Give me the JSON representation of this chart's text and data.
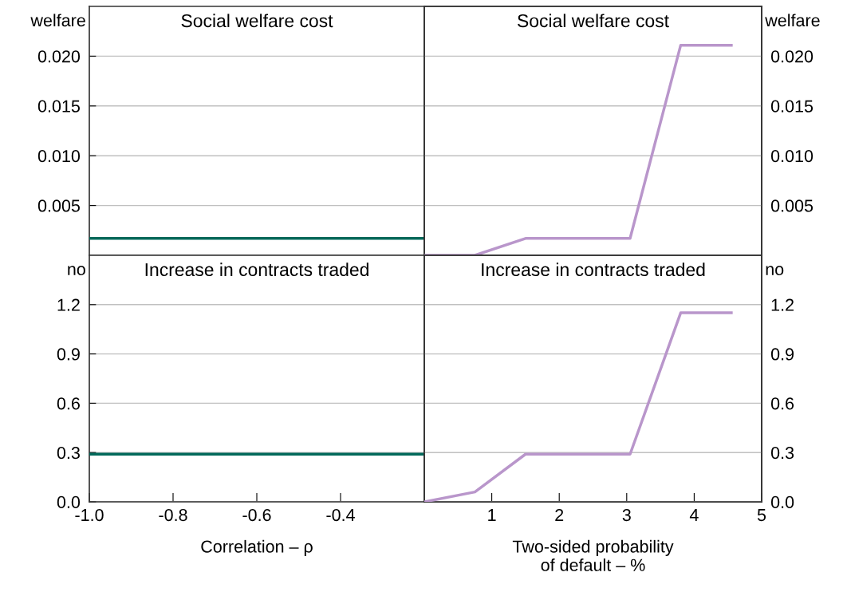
{
  "chart_data": [
    {
      "type": "line",
      "title": "Social welfare cost",
      "annotations": [
        "welfare"
      ],
      "xlim": [
        -1.0,
        -0.2
      ],
      "ylim": [
        0,
        0.025
      ],
      "yticks": [
        0.005,
        {
          "value": 0.01,
          "label": "0.010"
        },
        0.015,
        {
          "value": 0.02,
          "label": "0.020"
        }
      ],
      "grid": "y",
      "tick_labels": "y",
      "series": [
        {
          "color": "#00695a",
          "x": [
            -1.0,
            -0.2
          ],
          "values": [
            0.0017,
            0.0017
          ]
        }
      ]
    },
    {
      "type": "line",
      "title": "Social welfare cost",
      "annotations": [
        "welfare"
      ],
      "xlim": [
        0,
        5
      ],
      "y2lim": [
        0,
        0.025
      ],
      "y2ticks": [
        0.005,
        {
          "value": 0.01,
          "label": "0.010"
        },
        0.015,
        {
          "value": 0.02,
          "label": "0.020"
        }
      ],
      "grid": "y",
      "tick_labels": "y",
      "series": [
        {
          "color": "#b996cb",
          "axis": "y2",
          "x": [
            0,
            0.75,
            1.5,
            3.05,
            3.8,
            4.55
          ],
          "values": [
            0,
            0,
            0.0017,
            0.0017,
            0.0211,
            0.0211
          ]
        }
      ]
    },
    {
      "type": "line",
      "title": "Increase in contracts traded",
      "annotations": [
        "no"
      ],
      "xlabel": "Correlation – ρ",
      "xlim": [
        -1.0,
        -0.2
      ],
      "xticks": [
        {
          "value": -1.0,
          "label": "-1.0"
        },
        {
          "value": -0.8,
          "label": "-0.8"
        },
        {
          "value": -0.6,
          "label": "-0.6"
        },
        {
          "value": -0.4,
          "label": "-0.4"
        }
      ],
      "ylim": [
        0,
        1.5
      ],
      "yticks": [
        {
          "value": 0,
          "label": "0.0"
        },
        0.3,
        0.6,
        0.9,
        1.2
      ],
      "grid": "y",
      "series": [
        {
          "color": "#00695a",
          "x": [
            -1.0,
            -0.2
          ],
          "values": [
            0.29,
            0.29
          ]
        }
      ]
    },
    {
      "type": "line",
      "title": "Increase in contracts traded",
      "annotations": [
        "no"
      ],
      "xlabel": "Two-sided probability\nof default – %",
      "xlim": [
        0,
        5
      ],
      "xticks": [
        1,
        2,
        3,
        4,
        5
      ],
      "y2lim": [
        0,
        1.5
      ],
      "y2ticks": [
        {
          "value": 0,
          "label": "0.0"
        },
        0.3,
        0.6,
        0.9,
        1.2
      ],
      "grid": "y",
      "series": [
        {
          "color": "#b996cb",
          "axis": "y2",
          "x": [
            0,
            0.75,
            1.5,
            3.05,
            3.8,
            4.55
          ],
          "values": [
            0,
            0.06,
            0.29,
            0.29,
            1.15,
            1.15
          ]
        }
      ]
    }
  ]
}
